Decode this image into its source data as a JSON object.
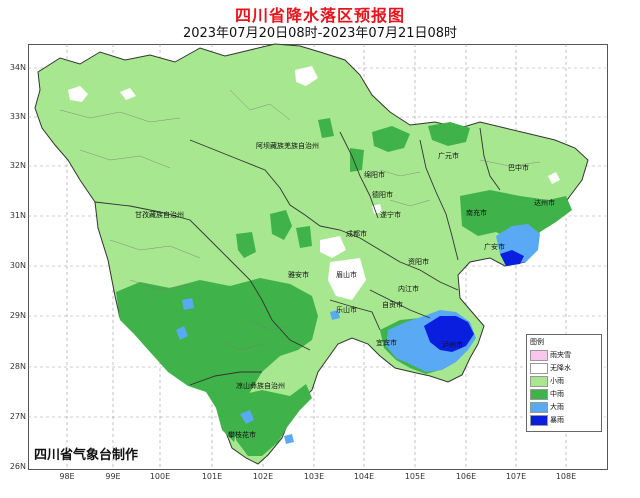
{
  "title": "四川省降水落区预报图",
  "subtitle": "2023年07月20日08时-2023年07月21日08时",
  "credit": "四川省气象台制作",
  "y_ticks": [
    "34N",
    "33N",
    "32N",
    "31N",
    "30N",
    "29N",
    "28N",
    "27N",
    "26N"
  ],
  "x_ticks": [
    "98E",
    "99E",
    "100E",
    "101E",
    "102E",
    "103E",
    "104E",
    "105E",
    "106E",
    "107E",
    "108E"
  ],
  "colors": {
    "light_rain": "#a6e78f",
    "moderate_rain": "#3fb34a",
    "heavy_rain": "#5aa9f4",
    "storm": "#0a1ee0",
    "sleet": "#f9c6ec",
    "no_rain": "#ffffff",
    "title": "#e8141c"
  },
  "legend": {
    "title": "图例",
    "items": [
      {
        "label": "雨夹雪",
        "color": "#f9c6ec"
      },
      {
        "label": "无降水",
        "color": "#ffffff"
      },
      {
        "label": "小雨",
        "color": "#a6e78f"
      },
      {
        "label": "中雨",
        "color": "#3fb34a"
      },
      {
        "label": "大雨",
        "color": "#5aa9f4"
      },
      {
        "label": "暴雨",
        "color": "#0a1ee0"
      }
    ]
  },
  "cities": [
    {
      "name": "阿坝藏族羌族自治州"
    },
    {
      "name": "甘孜藏族自治州"
    },
    {
      "name": "凉山彝族自治州"
    },
    {
      "name": "广元市"
    },
    {
      "name": "巴中市"
    },
    {
      "name": "绵阳市"
    },
    {
      "name": "南充市"
    },
    {
      "name": "达州市"
    },
    {
      "name": "德阳市"
    },
    {
      "name": "遂宁市"
    },
    {
      "name": "广安市"
    },
    {
      "name": "成都市"
    },
    {
      "name": "资阳市"
    },
    {
      "name": "雅安市"
    },
    {
      "name": "眉山市"
    },
    {
      "name": "内江市"
    },
    {
      "name": "乐山市"
    },
    {
      "name": "自贡市"
    },
    {
      "name": "宜宾市"
    },
    {
      "name": "泸州市"
    },
    {
      "name": "攀枝花市"
    }
  ]
}
